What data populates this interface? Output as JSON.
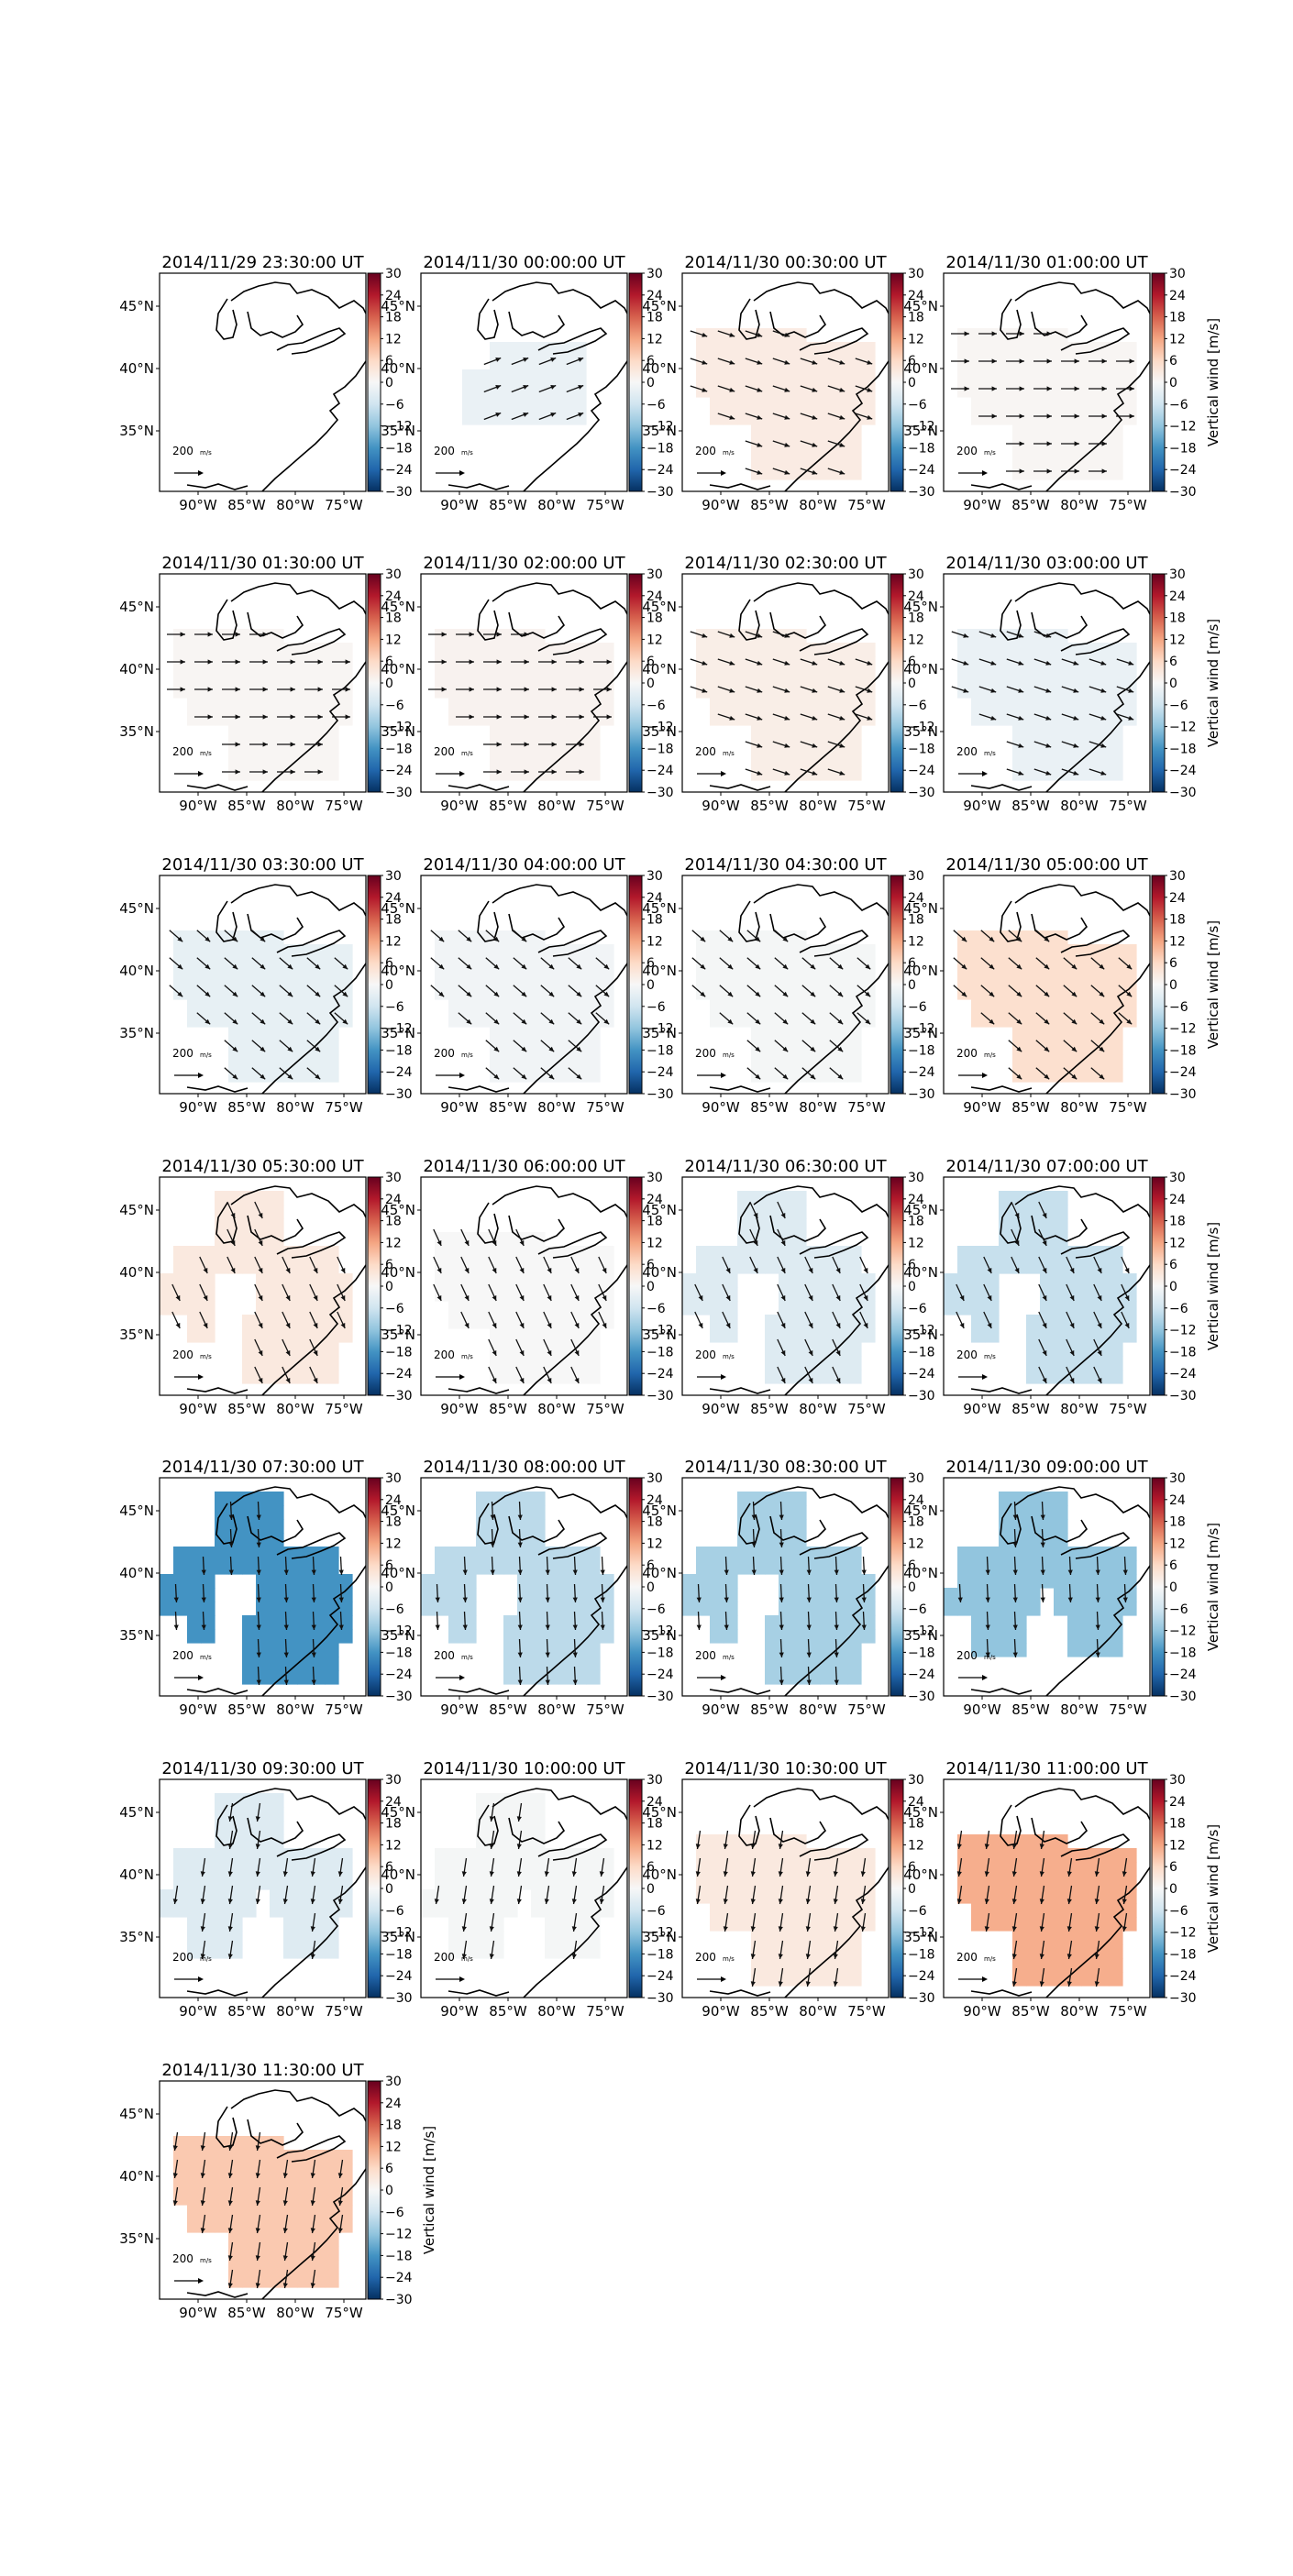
{
  "figure": {
    "colorbar": {
      "label": "Vertical wind [m/s]",
      "ticks": [
        "30",
        "24",
        "18",
        "12",
        "6",
        "0",
        "−6",
        "−12",
        "−18",
        "−24",
        "−30"
      ],
      "min": -30,
      "max": 30,
      "colormap": "RdBu_r",
      "colors": [
        "#053061",
        "#2166ac",
        "#4393c3",
        "#92c5de",
        "#d1e5f0",
        "#f7f7f7",
        "#fddbc7",
        "#f4a582",
        "#d6604d",
        "#b2182b",
        "#67001f"
      ]
    },
    "axes": {
      "lon_ticks": [
        "90°W",
        "85°W",
        "80°W",
        "75°W"
      ],
      "lat_ticks": [
        "45°N",
        "40°N",
        "35°N"
      ]
    },
    "quiver_key": {
      "label": "200",
      "unit": "m/s"
    },
    "panels": [
      {
        "title": "2014/11/29 23:30:00 UT",
        "vertical_wind": null,
        "shape": "none",
        "arrows": "none"
      },
      {
        "title": "2014/11/30 00:00:00 UT",
        "vertical_wind": -2,
        "shape": "central",
        "arrows": "ene"
      },
      {
        "title": "2014/11/30 00:30:00 UT",
        "vertical_wind": 2.5,
        "shape": "large",
        "arrows": "ese"
      },
      {
        "title": "2014/11/30 01:00:00 UT",
        "vertical_wind": 0.5,
        "shape": "large",
        "arrows": "e"
      },
      {
        "title": "2014/11/30 01:30:00 UT",
        "vertical_wind": 0.5,
        "shape": "large",
        "arrows": "e"
      },
      {
        "title": "2014/11/30 02:00:00 UT",
        "vertical_wind": 1,
        "shape": "large",
        "arrows": "e"
      },
      {
        "title": "2014/11/30 02:30:00 UT",
        "vertical_wind": 2,
        "shape": "large",
        "arrows": "ese"
      },
      {
        "title": "2014/11/30 03:00:00 UT",
        "vertical_wind": -2,
        "shape": "large",
        "arrows": "ese"
      },
      {
        "title": "2014/11/30 03:30:00 UT",
        "vertical_wind": -2.5,
        "shape": "large",
        "arrows": "se"
      },
      {
        "title": "2014/11/30 04:00:00 UT",
        "vertical_wind": -1,
        "shape": "large",
        "arrows": "se"
      },
      {
        "title": "2014/11/30 04:30:00 UT",
        "vertical_wind": -0.5,
        "shape": "large",
        "arrows": "se"
      },
      {
        "title": "2014/11/30 05:00:00 UT",
        "vertical_wind": 5,
        "shape": "large",
        "arrows": "se"
      },
      {
        "title": "2014/11/30 05:30:00 UT",
        "vertical_wind": 3,
        "shape": "notch",
        "arrows": "sse"
      },
      {
        "title": "2014/11/30 06:00:00 UT",
        "vertical_wind": 0,
        "shape": "large",
        "arrows": "sse"
      },
      {
        "title": "2014/11/30 06:30:00 UT",
        "vertical_wind": -4,
        "shape": "notch",
        "arrows": "sse"
      },
      {
        "title": "2014/11/30 07:00:00 UT",
        "vertical_wind": -7,
        "shape": "notch",
        "arrows": "sse"
      },
      {
        "title": "2014/11/30 07:30:00 UT",
        "vertical_wind": -18,
        "shape": "notch",
        "arrows": "s"
      },
      {
        "title": "2014/11/30 08:00:00 UT",
        "vertical_wind": -8,
        "shape": "notch",
        "arrows": "s"
      },
      {
        "title": "2014/11/30 08:30:00 UT",
        "vertical_wind": -10,
        "shape": "notch",
        "arrows": "s"
      },
      {
        "title": "2014/11/30 09:00:00 UT",
        "vertical_wind": -12,
        "shape": "twolobe",
        "arrows": "s"
      },
      {
        "title": "2014/11/30 09:30:00 UT",
        "vertical_wind": -4,
        "shape": "twolobe",
        "arrows": "ssw"
      },
      {
        "title": "2014/11/30 10:00:00 UT",
        "vertical_wind": -0.5,
        "shape": "twolobe",
        "arrows": "ssw"
      },
      {
        "title": "2014/11/30 10:30:00 UT",
        "vertical_wind": 3,
        "shape": "large",
        "arrows": "ssw"
      },
      {
        "title": "2014/11/30 11:00:00 UT",
        "vertical_wind": 11,
        "shape": "large",
        "arrows": "ssw"
      },
      {
        "title": "2014/11/30 11:30:00 UT",
        "vertical_wind": 8,
        "shape": "large",
        "arrows": "ssw"
      }
    ]
  }
}
